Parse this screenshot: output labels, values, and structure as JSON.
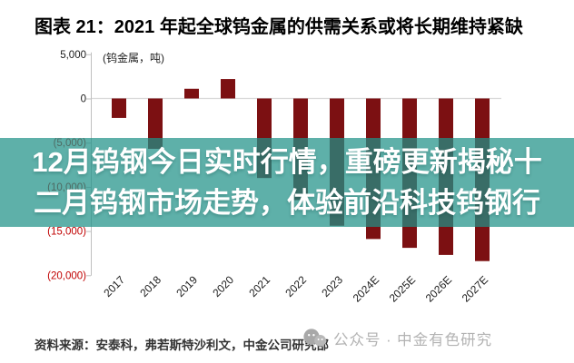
{
  "title": "图表 21：2021 年起全球钨金属的供需关系或将长期维持紧缺",
  "overlay": {
    "line1": "12月钨钢今日实时行情，重磅更新揭秘十",
    "line2": "二月钨钢市场走势，体验前沿科技钨钢行",
    "background_color": "#209188",
    "text_color": "#FFFFFF"
  },
  "chart_data": {
    "type": "bar",
    "title": "图表 21：2021 年起全球钨金属的供需关系或将长期维持紧缺",
    "unit_label": "(钨金属，吨)",
    "categories": [
      "2017",
      "2018",
      "2019",
      "2020",
      "2021",
      "2022",
      "2023",
      "2024E",
      "2025E",
      "2026E",
      "2027E"
    ],
    "values": [
      -2200,
      -5700,
      1100,
      2200,
      -9000,
      -11500,
      -14400,
      -15900,
      -16900,
      -17700,
      -18400
    ],
    "ylim": [
      -20000,
      5000
    ],
    "yticks": [
      5000,
      0,
      -5000,
      -10000,
      -15000,
      -20000
    ],
    "ytick_labels": [
      "5,000",
      "0",
      "(5,000)",
      "(10,000)",
      "(15,000)",
      "(20,000)"
    ],
    "bar_color": "#7C1012",
    "positive_label_color": "#1a1a1a",
    "negative_label_color": "#C00000",
    "axis_color": "#BFBFBF",
    "zero_line_color": "#D9D9D9",
    "grid": "zero-line-only",
    "legend": "none",
    "xlabel": "",
    "ylabel": ""
  },
  "footer": {
    "source": "资料来源：安泰科，弗若斯特沙利文，中金公司研究部",
    "wechat_label": "公众号 · 中金有色研究"
  }
}
